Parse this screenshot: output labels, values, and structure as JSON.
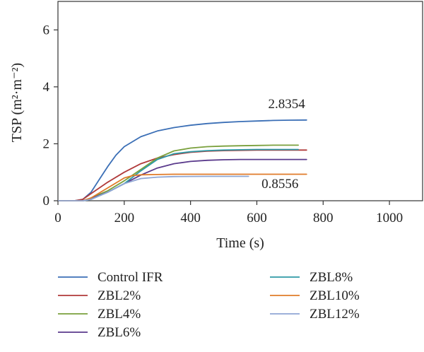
{
  "chart_data": {
    "type": "line",
    "xlabel": "Time (s)",
    "ylabel": "TSP (m²·m⁻²)",
    "xlim": [
      0,
      1100
    ],
    "ylim": [
      0,
      7
    ],
    "x_ticks": [
      0,
      200,
      400,
      600,
      800,
      1000
    ],
    "y_ticks": [
      0,
      2,
      4,
      6
    ],
    "grid": false,
    "legend_position": "bottom",
    "series": [
      {
        "name": "Control IFR",
        "color": "#3b6fb6",
        "x": [
          0,
          50,
          75,
          100,
          125,
          150,
          175,
          200,
          250,
          300,
          350,
          400,
          450,
          500,
          550,
          600,
          650,
          700,
          750
        ],
        "y": [
          0,
          0,
          0.05,
          0.3,
          0.75,
          1.2,
          1.6,
          1.9,
          2.25,
          2.45,
          2.57,
          2.65,
          2.71,
          2.75,
          2.78,
          2.8,
          2.82,
          2.83,
          2.8354
        ]
      },
      {
        "name": "ZBL2%",
        "color": "#b03a3a",
        "x": [
          0,
          50,
          75,
          100,
          150,
          200,
          250,
          300,
          350,
          400,
          450,
          500,
          550,
          600,
          650,
          700,
          750
        ],
        "y": [
          0,
          0,
          0.05,
          0.25,
          0.65,
          1.0,
          1.3,
          1.5,
          1.62,
          1.7,
          1.74,
          1.76,
          1.77,
          1.78,
          1.78,
          1.78,
          1.78
        ]
      },
      {
        "name": "ZBL4%",
        "color": "#7aa03c",
        "x": [
          0,
          75,
          100,
          150,
          200,
          250,
          300,
          350,
          400,
          450,
          500,
          550,
          600,
          650,
          700,
          725
        ],
        "y": [
          0,
          0,
          0.1,
          0.35,
          0.7,
          1.1,
          1.5,
          1.75,
          1.85,
          1.9,
          1.92,
          1.93,
          1.94,
          1.95,
          1.95,
          1.95
        ]
      },
      {
        "name": "ZBL6%",
        "color": "#5a3a8c",
        "x": [
          0,
          75,
          100,
          150,
          200,
          250,
          300,
          350,
          400,
          450,
          500,
          550,
          600,
          650,
          700,
          750
        ],
        "y": [
          0,
          0,
          0.08,
          0.3,
          0.6,
          0.9,
          1.15,
          1.3,
          1.38,
          1.42,
          1.44,
          1.45,
          1.45,
          1.45,
          1.45,
          1.45
        ]
      },
      {
        "name": "ZBL8%",
        "color": "#2f9aa6",
        "x": [
          0,
          75,
          100,
          150,
          200,
          250,
          300,
          350,
          400,
          450,
          500,
          550,
          600,
          650,
          700,
          725
        ],
        "y": [
          0,
          0,
          0.05,
          0.3,
          0.6,
          1.05,
          1.45,
          1.65,
          1.72,
          1.76,
          1.78,
          1.79,
          1.8,
          1.8,
          1.8,
          1.8
        ]
      },
      {
        "name": "ZBL10%",
        "color": "#e07b2a",
        "x": [
          0,
          75,
          100,
          150,
          200,
          225,
          250,
          300,
          350,
          400,
          500,
          600,
          700,
          750
        ],
        "y": [
          0,
          0,
          0.1,
          0.45,
          0.8,
          0.88,
          0.91,
          0.92,
          0.93,
          0.93,
          0.93,
          0.93,
          0.93,
          0.93
        ]
      },
      {
        "name": "ZBL12%",
        "color": "#8fa6d4",
        "x": [
          0,
          75,
          100,
          150,
          200,
          250,
          300,
          350,
          400,
          450,
          500,
          550,
          575
        ],
        "y": [
          0,
          0,
          0.05,
          0.3,
          0.6,
          0.78,
          0.83,
          0.85,
          0.855,
          0.8556,
          0.8556,
          0.8556,
          0.8556
        ]
      }
    ],
    "annotations": [
      {
        "text": "2.8354",
        "x": 690,
        "y": 3.25
      },
      {
        "text": "0.8556",
        "x": 670,
        "y": 0.45
      }
    ]
  }
}
